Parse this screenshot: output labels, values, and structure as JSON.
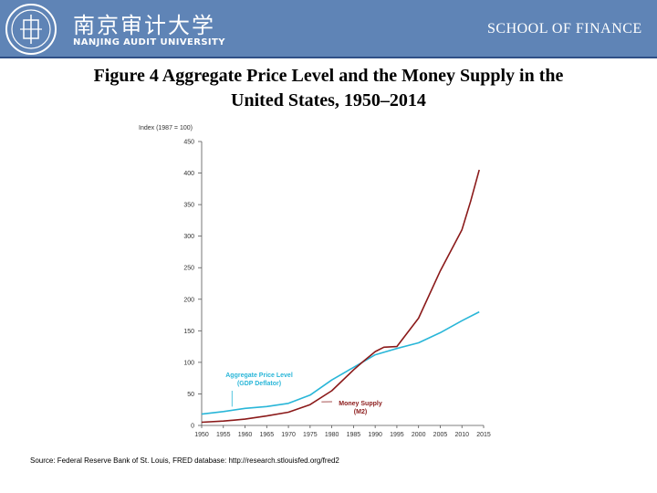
{
  "header": {
    "university_cn": "南京审计大学",
    "university_en": "NANJING AUDIT UNIVERSITY",
    "school": "SCHOOL OF FINANCE",
    "bar_color": "#5f84b6"
  },
  "title_line1": "Figure 4 Aggregate Price Level and the Money Supply in the",
  "title_line2": "United States, 1950–2014",
  "source": "Source: Federal Reserve Bank of St. Louis, FRED database: http://research.stlouisfed.org/fred2",
  "chart_data": {
    "type": "line",
    "title": "",
    "ylabel": "Index (1987 = 100)",
    "xlabel": "",
    "ylim": [
      0,
      450
    ],
    "xlim": [
      1950,
      2015
    ],
    "yticks": [
      0,
      50,
      100,
      150,
      200,
      250,
      300,
      350,
      400,
      450
    ],
    "xticks": [
      1950,
      1955,
      1960,
      1965,
      1970,
      1975,
      1980,
      1985,
      1990,
      1995,
      2000,
      2005,
      2010,
      2015
    ],
    "grid": false,
    "series": [
      {
        "name": "Aggregate Price Level (GDP Deflator)",
        "color": "#29b6d8",
        "x": [
          1950,
          1955,
          1960,
          1965,
          1970,
          1975,
          1980,
          1985,
          1987,
          1990,
          1995,
          2000,
          2005,
          2010,
          2014
        ],
        "values": [
          18,
          22,
          27,
          30,
          35,
          48,
          72,
          92,
          100,
          112,
          122,
          131,
          147,
          166,
          180
        ]
      },
      {
        "name": "Money Supply (M2)",
        "color": "#8b1a1a",
        "x": [
          1950,
          1955,
          1960,
          1965,
          1970,
          1975,
          1980,
          1985,
          1987,
          1990,
          1992,
          1995,
          2000,
          2005,
          2010,
          2012,
          2014
        ],
        "values": [
          5,
          7,
          10,
          15,
          21,
          33,
          55,
          88,
          100,
          117,
          124,
          125,
          170,
          245,
          310,
          355,
          405
        ]
      }
    ],
    "annotations": [
      {
        "lines": [
          "Aggregate Price Level",
          "(GDP Deflator)"
        ],
        "color": "#29b6d8",
        "series": 0,
        "at_x": 1957
      },
      {
        "lines": [
          "Money Supply",
          "(M2)"
        ],
        "color": "#8b1a1a",
        "series": 1,
        "at_x": 1977
      }
    ]
  }
}
